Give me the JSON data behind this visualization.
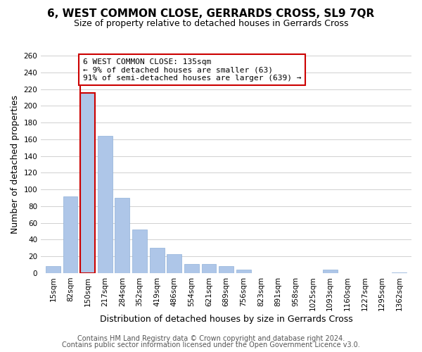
{
  "title": "6, WEST COMMON CLOSE, GERRARDS CROSS, SL9 7QR",
  "subtitle": "Size of property relative to detached houses in Gerrards Cross",
  "xlabel": "Distribution of detached houses by size in Gerrards Cross",
  "ylabel": "Number of detached properties",
  "bar_labels": [
    "15sqm",
    "82sqm",
    "150sqm",
    "217sqm",
    "284sqm",
    "352sqm",
    "419sqm",
    "486sqm",
    "554sqm",
    "621sqm",
    "689sqm",
    "756sqm",
    "823sqm",
    "891sqm",
    "958sqm",
    "1025sqm",
    "1093sqm",
    "1160sqm",
    "1227sqm",
    "1295sqm",
    "1362sqm"
  ],
  "bar_heights": [
    8,
    92,
    215,
    164,
    90,
    52,
    30,
    23,
    11,
    11,
    8,
    4,
    0,
    0,
    0,
    0,
    4,
    0,
    0,
    0,
    1
  ],
  "bar_color": "#aec6e8",
  "bar_edge_color": "#aec6e8",
  "highlight_bar_index": 2,
  "highlight_line_color": "#cc0000",
  "ylim": [
    0,
    260
  ],
  "yticks": [
    0,
    20,
    40,
    60,
    80,
    100,
    120,
    140,
    160,
    180,
    200,
    220,
    240,
    260
  ],
  "annotation_text": "6 WEST COMMON CLOSE: 135sqm\n← 9% of detached houses are smaller (63)\n91% of semi-detached houses are larger (639) →",
  "annotation_box_edge": "#cc0000",
  "footer_line1": "Contains HM Land Registry data © Crown copyright and database right 2024.",
  "footer_line2": "Contains public sector information licensed under the Open Government Licence v3.0.",
  "background_color": "#ffffff",
  "grid_color": "#d0d0d0",
  "title_fontsize": 11,
  "subtitle_fontsize": 9,
  "axis_label_fontsize": 9,
  "tick_fontsize": 7.5,
  "annotation_fontsize": 8,
  "footer_fontsize": 7
}
